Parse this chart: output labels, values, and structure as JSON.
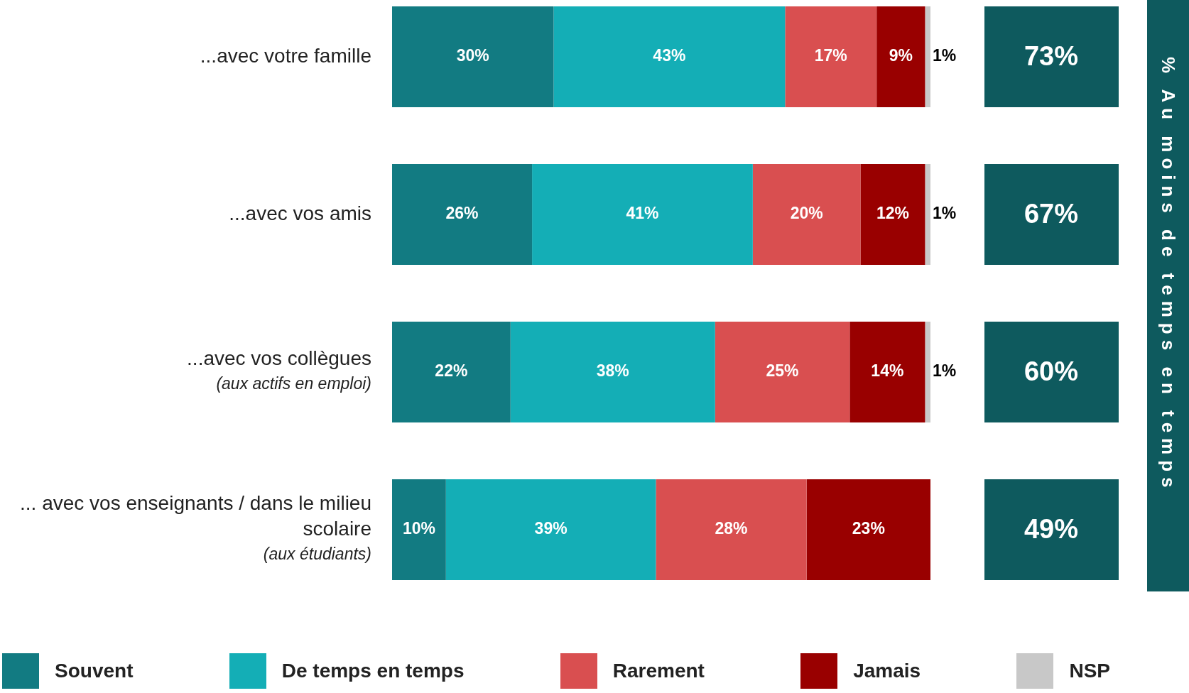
{
  "chart_data": {
    "type": "bar",
    "orientation": "horizontal",
    "stacked": true,
    "categories": [
      "...avec votre famille",
      "...avec vos amis",
      "...avec vos collègues\n(aux actifs en emploi)",
      "... avec vos enseignants / dans le milieu\nscolaire\n(aux étudiants)"
    ],
    "series": [
      {
        "name": "Souvent",
        "color": "#127b82",
        "values": [
          30,
          26,
          22,
          10
        ],
        "value_labels": [
          "30%",
          "26%",
          "22%",
          "10%"
        ]
      },
      {
        "name": "De temps en temps",
        "color": "#14aeb6",
        "values": [
          43,
          41,
          38,
          39
        ],
        "value_labels": [
          "43%",
          "41%",
          "38%",
          "39%"
        ]
      },
      {
        "name": "Rarement",
        "color": "#d94f50",
        "values": [
          17,
          20,
          25,
          28
        ],
        "value_labels": [
          "17%",
          "20%",
          "25%",
          "28%"
        ]
      },
      {
        "name": "Jamais",
        "color": "#990000",
        "values": [
          9,
          12,
          14,
          23
        ],
        "value_labels": [
          "9%",
          "12%",
          "14%",
          "23%"
        ]
      },
      {
        "name": "NSP",
        "color": "#c8c8c8",
        "values": [
          1,
          1,
          1,
          null
        ],
        "value_labels": [
          "1%",
          "1%",
          "1%",
          null
        ]
      }
    ],
    "xlim": [
      0,
      100
    ],
    "annotations": [
      "% Au moins de temps en temps",
      "73%",
      "67%",
      "60%",
      "49%"
    ],
    "legend": "bottom"
  }
}
